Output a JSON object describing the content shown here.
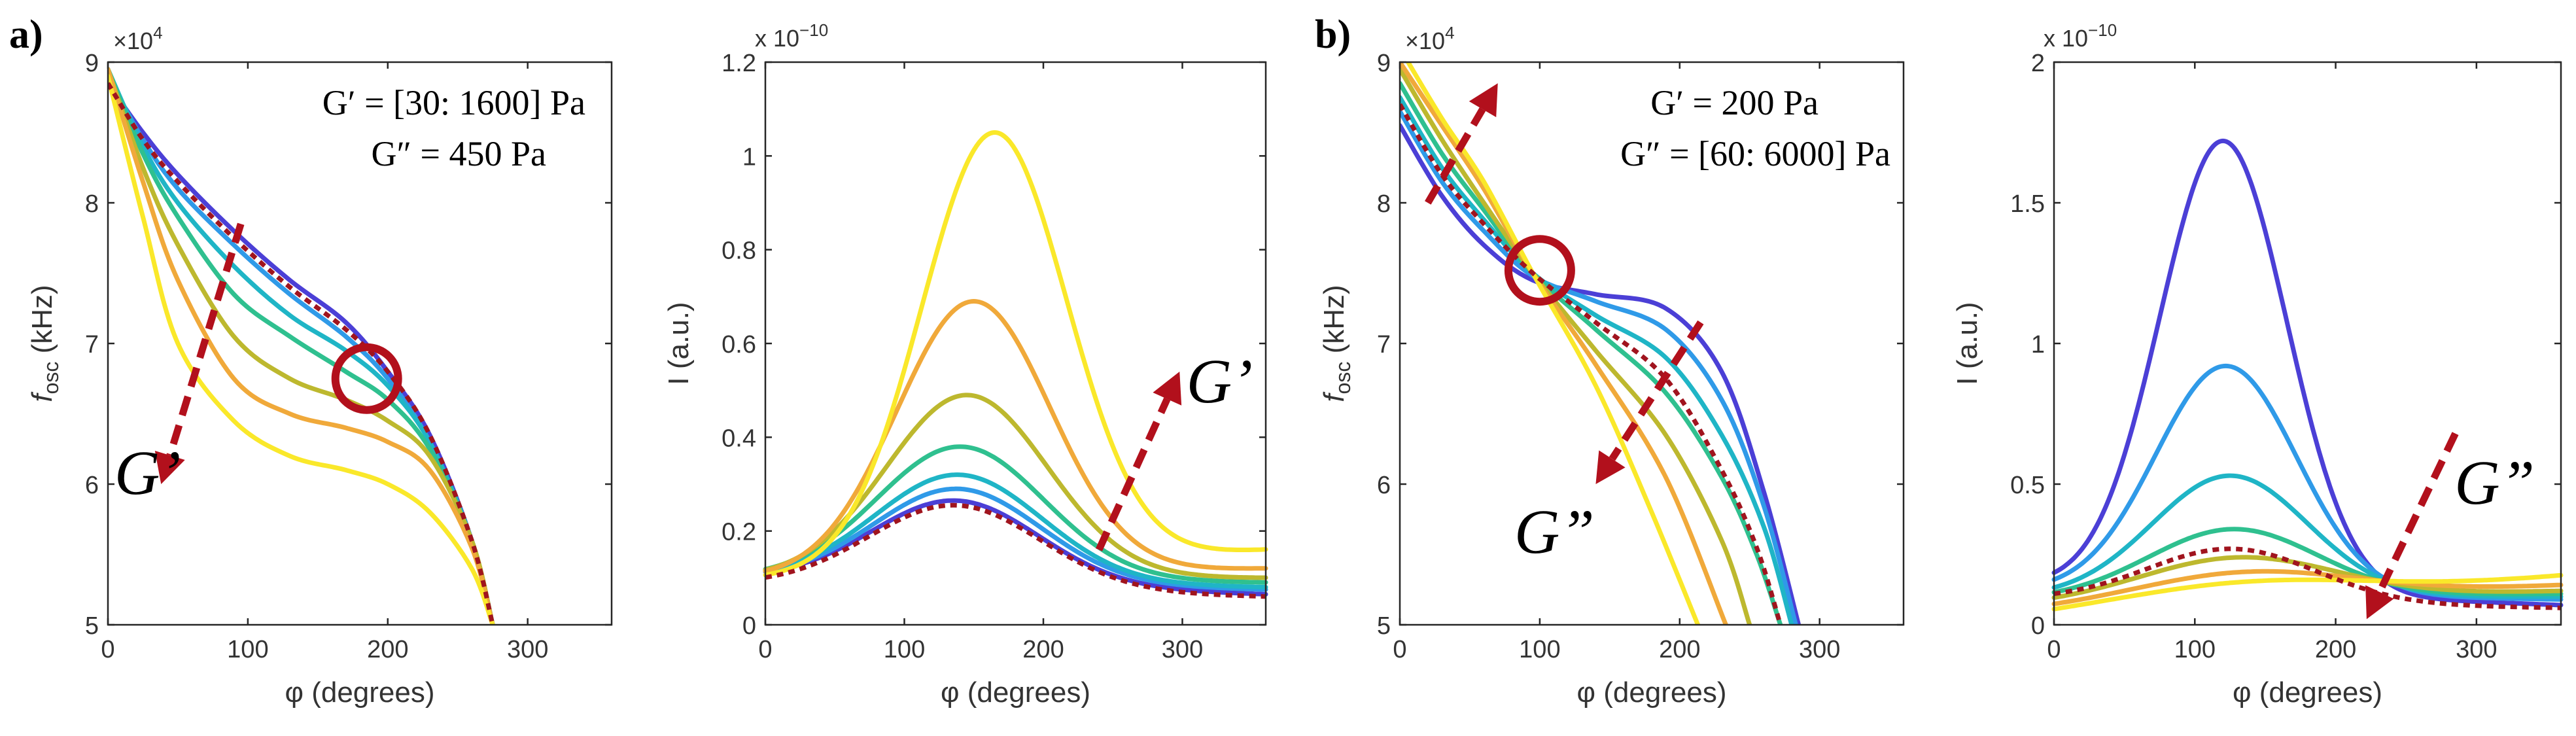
{
  "panel_letters": [
    "a)",
    "b)"
  ],
  "xlabel": "φ (degrees)",
  "fosc_ylabel_main": "f",
  "fosc_ylabel_sub": "osc",
  "fosc_ylabel_unit": "(kHz)",
  "fosc_exponent_base": "×10",
  "fosc_exponent_power": "4",
  "intensity_ylabel": "I (a.u.)",
  "intensity_exponent_base": "x 10",
  "intensity_exponent_power": "−10",
  "colors": {
    "palette": [
      "#4b3fd6",
      "#3f6fe6",
      "#2f9ae8",
      "#1fb5c6",
      "#2fc08f",
      "#7cc24e",
      "#bdb82e",
      "#f0a93a",
      "#fae82a"
    ],
    "reference": "#a0141e",
    "marker": "#b2101c"
  },
  "chart_data": [
    {
      "id": "a-fosc",
      "type": "line",
      "xlabel": "φ (degrees)",
      "ylabel": "fosc (kHz)",
      "xlim": [
        0,
        360
      ],
      "ylim": [
        5,
        9
      ],
      "xticks": [
        0,
        100,
        200,
        300
      ],
      "yticks": [
        5,
        6,
        7,
        8,
        9
      ],
      "y_multiplier": "×10^4",
      "annotations": [
        "G′ = [30: 1600] Pa",
        "G″ = 450 Pa",
        "G’"
      ],
      "series": [
        {
          "name": "blue",
          "color": "#4b3fd6",
          "x": [
            0,
            25,
            50,
            90,
            130,
            170,
            200,
            230,
            260,
            275
          ],
          "y": [
            8.85,
            8.5,
            8.2,
            7.8,
            7.45,
            7.15,
            6.8,
            6.35,
            5.6,
            5.0
          ]
        },
        {
          "name": "light-blue",
          "color": "#2f9ae8",
          "x": [
            0,
            25,
            50,
            90,
            130,
            170,
            200,
            230,
            260,
            275
          ],
          "y": [
            8.9,
            8.45,
            8.1,
            7.7,
            7.35,
            7.05,
            6.75,
            6.3,
            5.6,
            5.0
          ]
        },
        {
          "name": "teal",
          "color": "#1fb5c6",
          "x": [
            0,
            25,
            50,
            90,
            130,
            170,
            200,
            230,
            260,
            275
          ],
          "y": [
            8.95,
            8.4,
            8.0,
            7.55,
            7.2,
            6.95,
            6.7,
            6.3,
            5.6,
            5.0
          ]
        },
        {
          "name": "green",
          "color": "#2fc08f",
          "x": [
            0,
            25,
            50,
            90,
            130,
            170,
            200,
            230,
            260,
            275
          ],
          "y": [
            8.95,
            8.35,
            7.9,
            7.35,
            7.05,
            6.8,
            6.6,
            6.25,
            5.6,
            5.0
          ]
        },
        {
          "name": "yellow-green",
          "color": "#bdb82e",
          "x": [
            0,
            25,
            50,
            90,
            130,
            170,
            200,
            230,
            260,
            275
          ],
          "y": [
            8.95,
            8.25,
            7.7,
            7.05,
            6.75,
            6.6,
            6.45,
            6.2,
            5.6,
            5.0
          ]
        },
        {
          "name": "orange",
          "color": "#f0a93a",
          "x": [
            0,
            25,
            50,
            90,
            130,
            170,
            200,
            230,
            260,
            275
          ],
          "y": [
            8.95,
            8.15,
            7.45,
            6.75,
            6.5,
            6.4,
            6.3,
            6.1,
            5.55,
            5.0
          ]
        },
        {
          "name": "yellow",
          "color": "#fae82a",
          "x": [
            0,
            25,
            50,
            90,
            130,
            170,
            200,
            230,
            260,
            275
          ],
          "y": [
            8.9,
            7.9,
            7.0,
            6.45,
            6.2,
            6.1,
            6.0,
            5.8,
            5.4,
            5.0
          ]
        },
        {
          "name": "reference",
          "color": "#a0141e",
          "dashed": true,
          "x": [
            0,
            25,
            50,
            90,
            130,
            170,
            200,
            230,
            260,
            275
          ],
          "y": [
            8.85,
            8.45,
            8.15,
            7.75,
            7.4,
            7.1,
            6.8,
            6.35,
            5.6,
            5.0
          ]
        }
      ],
      "marker_circle": {
        "x": 185,
        "y": 6.75
      },
      "arrow": {
        "from": [
          95,
          7.85
        ],
        "to": [
          38,
          6.0
        ]
      }
    },
    {
      "id": "a-intensity",
      "type": "line",
      "xlabel": "φ (degrees)",
      "ylabel": "I (a.u.)",
      "xlim": [
        0,
        360
      ],
      "ylim": [
        0,
        1.2
      ],
      "xticks": [
        0,
        100,
        200,
        300
      ],
      "yticks": [
        0,
        0.2,
        0.4,
        0.6,
        0.8,
        1,
        1.2
      ],
      "ytick_labels": [
        "0",
        "0.2",
        "0.4",
        "0.6",
        "0.8",
        "1",
        "1.2"
      ],
      "y_multiplier": "x 10^−10",
      "annotations": [
        "G’"
      ],
      "series": [
        {
          "name": "blue",
          "color": "#4b3fd6",
          "peak_x": 135,
          "peak": 0.265,
          "base_start": 0.1,
          "base_end": 0.065,
          "width": 60
        },
        {
          "name": "light-blue",
          "color": "#2f9ae8",
          "peak_x": 137,
          "peak": 0.29,
          "base_start": 0.1,
          "base_end": 0.075,
          "width": 60
        },
        {
          "name": "teal",
          "color": "#1fb5c6",
          "peak_x": 138,
          "peak": 0.32,
          "base_start": 0.1,
          "base_end": 0.08,
          "width": 60
        },
        {
          "name": "green",
          "color": "#2fc08f",
          "peak_x": 140,
          "peak": 0.38,
          "base_start": 0.1,
          "base_end": 0.09,
          "width": 60
        },
        {
          "name": "yellow-green",
          "color": "#bdb82e",
          "peak_x": 145,
          "peak": 0.49,
          "base_start": 0.1,
          "base_end": 0.1,
          "width": 58
        },
        {
          "name": "orange",
          "color": "#f0a93a",
          "peak_x": 150,
          "peak": 0.69,
          "base_start": 0.1,
          "base_end": 0.12,
          "width": 55
        },
        {
          "name": "yellow",
          "color": "#fae82a",
          "peak_x": 165,
          "peak": 1.05,
          "base_start": 0.1,
          "base_end": 0.16,
          "width": 52
        },
        {
          "name": "reference",
          "color": "#a0141e",
          "dashed": true,
          "peak_x": 135,
          "peak": 0.255,
          "base_start": 0.085,
          "base_end": 0.06,
          "width": 62
        }
      ],
      "arrow": {
        "from": [
          240,
          0.16
        ],
        "to": [
          298,
          0.54
        ]
      }
    },
    {
      "id": "b-fosc",
      "type": "line",
      "xlabel": "φ (degrees)",
      "ylabel": "fosc (kHz)",
      "xlim": [
        0,
        360
      ],
      "ylim": [
        5,
        9
      ],
      "xticks": [
        0,
        100,
        200,
        300
      ],
      "yticks": [
        5,
        6,
        7,
        8,
        9
      ],
      "y_multiplier": "×10^4",
      "annotations": [
        "G′ = 200 Pa",
        "G″ = [60: 6000] Pa",
        "G”"
      ],
      "series": [
        {
          "name": "blue",
          "color": "#4b3fd6",
          "x": [
            0,
            30,
            60,
            95,
            140,
            190,
            230,
            260,
            285
          ],
          "y": [
            8.55,
            8.05,
            7.7,
            7.45,
            7.35,
            7.25,
            6.8,
            5.95,
            5.0
          ]
        },
        {
          "name": "light-blue",
          "color": "#2f9ae8",
          "x": [
            0,
            30,
            60,
            95,
            140,
            190,
            230,
            260,
            283
          ],
          "y": [
            8.65,
            8.15,
            7.8,
            7.48,
            7.3,
            7.1,
            6.6,
            5.85,
            5.0
          ]
        },
        {
          "name": "teal",
          "color": "#1fb5c6",
          "x": [
            0,
            30,
            60,
            95,
            140,
            190,
            230,
            260,
            280
          ],
          "y": [
            8.75,
            8.25,
            7.88,
            7.5,
            7.2,
            6.9,
            6.35,
            5.7,
            5.0
          ]
        },
        {
          "name": "green",
          "color": "#2fc08f",
          "x": [
            0,
            30,
            60,
            95,
            140,
            190,
            230,
            255,
            272
          ],
          "y": [
            8.85,
            8.35,
            7.95,
            7.5,
            7.1,
            6.65,
            6.05,
            5.5,
            5.0
          ]
        },
        {
          "name": "yellow-green",
          "color": "#bdb82e",
          "x": [
            0,
            30,
            60,
            95,
            140,
            190,
            230,
            250
          ],
          "y": [
            8.95,
            8.45,
            8.0,
            7.5,
            6.95,
            6.35,
            5.6,
            5.0
          ]
        },
        {
          "name": "orange",
          "color": "#f0a93a",
          "x": [
            0,
            30,
            60,
            95,
            140,
            190,
            233
          ],
          "y": [
            9.0,
            8.55,
            8.1,
            7.5,
            6.85,
            6.05,
            5.0
          ]
        },
        {
          "name": "yellow",
          "color": "#fae82a",
          "x": [
            0,
            30,
            60,
            95,
            140,
            180,
            213
          ],
          "y": [
            9.1,
            8.6,
            8.15,
            7.5,
            6.7,
            5.8,
            5.0
          ]
        },
        {
          "name": "reference",
          "color": "#a0141e",
          "dashed": true,
          "x": [
            0,
            30,
            60,
            95,
            140,
            190,
            230,
            255,
            272
          ],
          "y": [
            8.7,
            8.2,
            7.85,
            7.5,
            7.15,
            6.75,
            6.1,
            5.55,
            5.0
          ]
        }
      ],
      "marker_circle": {
        "x": 100,
        "y": 7.52
      },
      "arrow_up": {
        "from": [
          20,
          8.0
        ],
        "to": [
          70,
          8.85
        ]
      },
      "arrow_down": {
        "from": [
          215,
          7.15
        ],
        "to": [
          140,
          6.0
        ]
      }
    },
    {
      "id": "b-intensity",
      "type": "line",
      "xlabel": "φ (degrees)",
      "ylabel": "I (a.u.)",
      "xlim": [
        0,
        360
      ],
      "ylim": [
        0,
        2
      ],
      "xticks": [
        0,
        100,
        200,
        300
      ],
      "yticks": [
        0,
        0.5,
        1,
        1.5,
        2
      ],
      "ytick_labels": [
        "0",
        "0.5",
        "1",
        "1.5",
        "2"
      ],
      "y_multiplier": "x 10^−10",
      "annotations": [
        "G”"
      ],
      "series": [
        {
          "name": "blue",
          "color": "#4b3fd6",
          "peak_x": 120,
          "peak": 1.72,
          "base_start": 0.14,
          "base_end": 0.07,
          "width": 45
        },
        {
          "name": "light-blue",
          "color": "#2f9ae8",
          "peak_x": 122,
          "peak": 0.92,
          "base_start": 0.12,
          "base_end": 0.09,
          "width": 50
        },
        {
          "name": "teal",
          "color": "#1fb5c6",
          "peak_x": 125,
          "peak": 0.53,
          "base_start": 0.1,
          "base_end": 0.1,
          "width": 55
        },
        {
          "name": "green",
          "color": "#2fc08f",
          "peak_x": 128,
          "peak": 0.34,
          "base_start": 0.09,
          "base_end": 0.11,
          "width": 60
        },
        {
          "name": "yellow-green",
          "color": "#bdb82e",
          "peak_x": 135,
          "peak": 0.24,
          "base_start": 0.07,
          "base_end": 0.12,
          "width": 70
        },
        {
          "name": "orange",
          "color": "#f0a93a",
          "peak_x": 150,
          "peak": 0.19,
          "base_start": 0.05,
          "base_end": 0.14,
          "width": 80
        },
        {
          "name": "yellow",
          "color": "#fae82a",
          "peak_x": 180,
          "peak": 0.16,
          "base_start": 0.03,
          "base_end": 0.18,
          "width": 100
        },
        {
          "name": "reference",
          "color": "#a0141e",
          "dashed": true,
          "peak_x": 125,
          "peak": 0.27,
          "base_start": 0.09,
          "base_end": 0.06,
          "width": 60
        }
      ],
      "arrow": {
        "from": [
          285,
          0.68
        ],
        "to": [
          222,
          0.02
        ]
      }
    }
  ]
}
